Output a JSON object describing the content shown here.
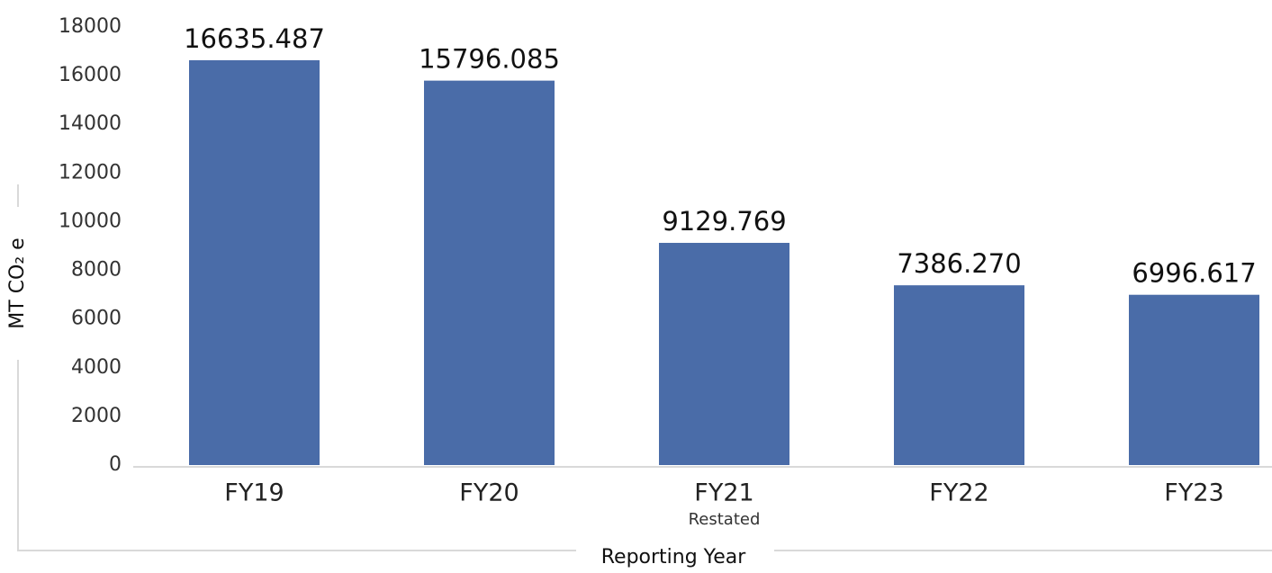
{
  "chart_data": {
    "type": "bar",
    "categories": [
      "FY19",
      "FY20",
      "FY21",
      "FY22",
      "FY23"
    ],
    "category_sublabels": [
      null,
      null,
      "Restated",
      null,
      null
    ],
    "values": [
      16635.487,
      15796.085,
      9129.769,
      7386.27,
      6996.617
    ],
    "value_labels": [
      "16635.487",
      "15796.085",
      "9129.769",
      "7386.270",
      "6996.617"
    ],
    "color": "#4a6ca8",
    "ylim": [
      0,
      18000
    ],
    "yticks": [
      0,
      2000,
      4000,
      6000,
      8000,
      10000,
      12000,
      14000,
      16000,
      18000
    ],
    "y_label": "MT CO₂ e",
    "x_label": "Reporting Year",
    "grid": false
  }
}
